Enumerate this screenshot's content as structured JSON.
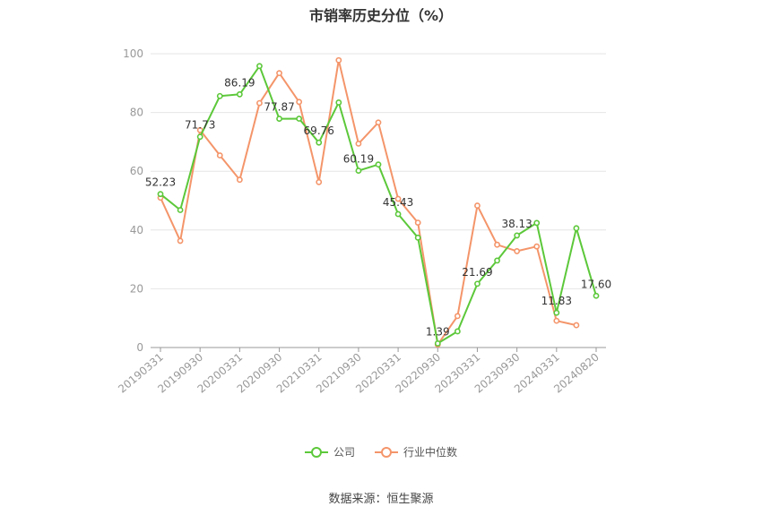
{
  "chart_data": {
    "type": "line",
    "title": "市销率历史分位（%）",
    "xlabel": "",
    "ylabel": "",
    "ylim": [
      0,
      100
    ],
    "yticks": [
      0,
      20,
      40,
      60,
      80,
      100
    ],
    "grid": true,
    "legend_position": "bottom",
    "x_tick_labels": [
      "20190331",
      "20190930",
      "20200331",
      "20200930",
      "20210331",
      "20210930",
      "20220331",
      "20220930",
      "20230331",
      "20230930",
      "20240331",
      "20240820"
    ],
    "x_tick_indices": [
      0,
      2,
      4,
      6,
      8,
      10,
      12,
      14,
      16,
      18,
      20,
      22
    ],
    "n_points": 23,
    "series": [
      {
        "name": "公司",
        "color": "#5cc83a",
        "values": [
          52.23,
          46.8,
          71.73,
          85.6,
          86.19,
          95.8,
          77.87,
          77.9,
          69.76,
          83.4,
          60.19,
          62.3,
          45.43,
          37.4,
          1.39,
          5.5,
          21.69,
          29.6,
          38.13,
          42.4,
          11.83,
          40.6,
          17.6
        ],
        "labels": {
          "0": "52.23",
          "2": "71.73",
          "4": "86.19",
          "6": "77.87",
          "8": "69.76",
          "10": "60.19",
          "12": "45.43",
          "14": "1.39",
          "16": "21.69",
          "18": "38.13",
          "20": "11.83",
          "22": "17.60"
        }
      },
      {
        "name": "行业中位数",
        "color": "#f4956a",
        "values": [
          51.0,
          36.3,
          74.0,
          65.4,
          57.1,
          83.2,
          93.4,
          83.6,
          56.3,
          97.8,
          69.4,
          76.6,
          50.6,
          42.5,
          1.0,
          10.7,
          48.3,
          35.0,
          32.8,
          34.4,
          9.1,
          7.6,
          null
        ]
      }
    ]
  },
  "source_text": "数据来源：恒生聚源"
}
